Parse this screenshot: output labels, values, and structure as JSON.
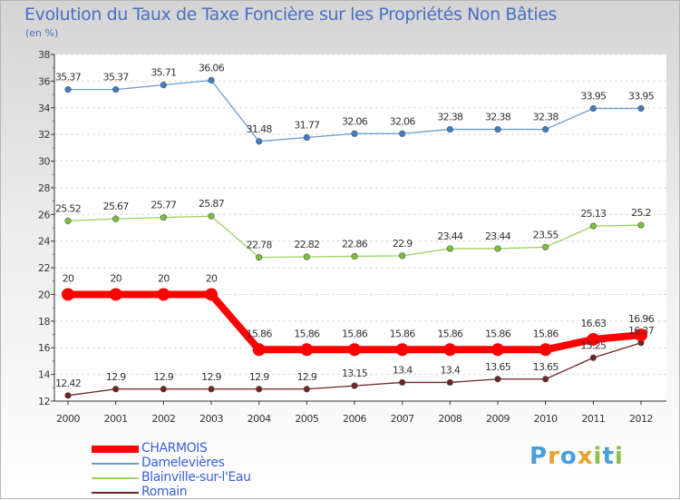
{
  "chart_data": {
    "type": "line",
    "title": "Evolution du Taux de Taxe Foncière sur les Propriétés Non Bâties",
    "subtitle": "(en %)",
    "xlabel": "",
    "ylabel": "",
    "x": [
      "2000",
      "2001",
      "2002",
      "2003",
      "2004",
      "2005",
      "2006",
      "2007",
      "2008",
      "2009",
      "2010",
      "2011",
      "2012"
    ],
    "ylim": [
      12,
      38
    ],
    "yticks": [
      12,
      14,
      16,
      18,
      20,
      22,
      24,
      26,
      28,
      30,
      32,
      34,
      36,
      38
    ],
    "legend_position": "bottom-left",
    "series": [
      {
        "name": "CHARMOIS",
        "color": "#ff0000",
        "values": [
          20,
          20,
          20,
          20,
          15.86,
          15.86,
          15.86,
          15.86,
          15.86,
          15.86,
          15.86,
          16.63,
          16.96
        ],
        "labels": [
          "20",
          "20",
          "20",
          "20",
          "15.86",
          "15.86",
          "15.86",
          "15.86",
          "15.86",
          "15.86",
          "15.86",
          "16.63",
          "16.96"
        ]
      },
      {
        "name": "Damelevières",
        "color": "#6a9bd1",
        "values": [
          35.37,
          35.37,
          35.71,
          36.06,
          31.48,
          31.77,
          32.06,
          32.06,
          32.38,
          32.38,
          32.38,
          33.95,
          33.95
        ],
        "labels": [
          "35.37",
          "35.37",
          "35.71",
          "36.06",
          "31.48",
          "31.77",
          "32.06",
          "32.06",
          "32.38",
          "32.38",
          "32.38",
          "33.95",
          "33.95"
        ]
      },
      {
        "name": "Blainville-sur-l'Eau",
        "color": "#99d35d",
        "values": [
          25.52,
          25.67,
          25.77,
          25.87,
          22.78,
          22.82,
          22.86,
          22.9,
          23.44,
          23.44,
          23.55,
          25.13,
          25.2
        ],
        "labels": [
          "25.52",
          "25.67",
          "25.77",
          "25.87",
          "22.78",
          "22.82",
          "22.86",
          "22.9",
          "23.44",
          "23.44",
          "23.55",
          "25.13",
          "25.2"
        ]
      },
      {
        "name": "Romain",
        "color": "#6e2525",
        "values": [
          12.42,
          12.9,
          12.9,
          12.9,
          12.9,
          12.9,
          13.15,
          13.4,
          13.4,
          13.65,
          13.65,
          15.25,
          16.37
        ],
        "labels": [
          "12.42",
          "12.9",
          "12.9",
          "12.9",
          "12.9",
          "12.9",
          "13.15",
          "13.4",
          "13.4",
          "13.65",
          "13.65",
          "15.25",
          "16.37"
        ]
      }
    ]
  },
  "brand": {
    "letters": [
      "P",
      "r",
      "o",
      "x",
      "i",
      "t",
      "i"
    ],
    "colors": [
      "#4a9fd8",
      "#e8a32c",
      "#4a9fd8",
      "#e8a32c",
      "#8bc34a",
      "#4a9fd8",
      "#8bc34a"
    ]
  }
}
